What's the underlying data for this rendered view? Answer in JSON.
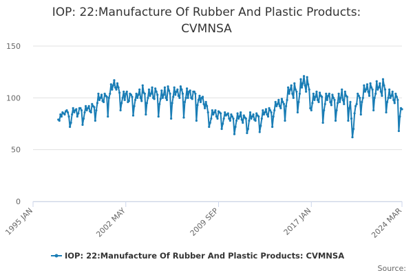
{
  "chart_data": {
    "type": "line",
    "title": "IOP: 22:Manufacture Of Rubber And Plastic Products: CVMNSA",
    "source": "Source:",
    "xlim": [
      "1995-01",
      "2024-03"
    ],
    "xticks": [
      {
        "value": "1995-01",
        "label": "1995 JAN"
      },
      {
        "value": "2002-05",
        "label": "2002 MAY"
      },
      {
        "value": "2009-09",
        "label": "2009 SEP"
      },
      {
        "value": "2017-01",
        "label": "2017 JAN"
      },
      {
        "value": "2024-03",
        "label": "2024 MAR"
      }
    ],
    "ylim": [
      0,
      150
    ],
    "yticks": [
      0,
      50,
      100,
      150
    ],
    "grid": true,
    "legend": "bottom",
    "x": [
      "1997-01",
      "1997-02",
      "1997-03",
      "1997-04",
      "1997-05",
      "1997-06",
      "1997-07",
      "1997-08",
      "1997-09",
      "1997-10",
      "1997-11",
      "1997-12",
      "1998-01",
      "1998-02",
      "1998-03",
      "1998-04",
      "1998-05",
      "1998-06",
      "1998-07",
      "1998-08",
      "1998-09",
      "1998-10",
      "1998-11",
      "1998-12",
      "1999-01",
      "1999-02",
      "1999-03",
      "1999-04",
      "1999-05",
      "1999-06",
      "1999-07",
      "1999-08",
      "1999-09",
      "1999-10",
      "1999-11",
      "1999-12",
      "2000-01",
      "2000-02",
      "2000-03",
      "2000-04",
      "2000-05",
      "2000-06",
      "2000-07",
      "2000-08",
      "2000-09",
      "2000-10",
      "2000-11",
      "2000-12",
      "2001-01",
      "2001-02",
      "2001-03",
      "2001-04",
      "2001-05",
      "2001-06",
      "2001-07",
      "2001-08",
      "2001-09",
      "2001-10",
      "2001-11",
      "2001-12",
      "2002-01",
      "2002-02",
      "2002-03",
      "2002-04",
      "2002-05",
      "2002-06",
      "2002-07",
      "2002-08",
      "2002-09",
      "2002-10",
      "2002-11",
      "2002-12",
      "2003-01",
      "2003-02",
      "2003-03",
      "2003-04",
      "2003-05",
      "2003-06",
      "2003-07",
      "2003-08",
      "2003-09",
      "2003-10",
      "2003-11",
      "2003-12",
      "2004-01",
      "2004-02",
      "2004-03",
      "2004-04",
      "2004-05",
      "2004-06",
      "2004-07",
      "2004-08",
      "2004-09",
      "2004-10",
      "2004-11",
      "2004-12",
      "2005-01",
      "2005-02",
      "2005-03",
      "2005-04",
      "2005-05",
      "2005-06",
      "2005-07",
      "2005-08",
      "2005-09",
      "2005-10",
      "2005-11",
      "2005-12",
      "2006-01",
      "2006-02",
      "2006-03",
      "2006-04",
      "2006-05",
      "2006-06",
      "2006-07",
      "2006-08",
      "2006-09",
      "2006-10",
      "2006-11",
      "2006-12",
      "2007-01",
      "2007-02",
      "2007-03",
      "2007-04",
      "2007-05",
      "2007-06",
      "2007-07",
      "2007-08",
      "2007-09",
      "2007-10",
      "2007-11",
      "2007-12",
      "2008-01",
      "2008-02",
      "2008-03",
      "2008-04",
      "2008-05",
      "2008-06",
      "2008-07",
      "2008-08",
      "2008-09",
      "2008-10",
      "2008-11",
      "2008-12",
      "2009-01",
      "2009-02",
      "2009-03",
      "2009-04",
      "2009-05",
      "2009-06",
      "2009-07",
      "2009-08",
      "2009-09",
      "2009-10",
      "2009-11",
      "2009-12",
      "2010-01",
      "2010-02",
      "2010-03",
      "2010-04",
      "2010-05",
      "2010-06",
      "2010-07",
      "2010-08",
      "2010-09",
      "2010-10",
      "2010-11",
      "2010-12",
      "2011-01",
      "2011-02",
      "2011-03",
      "2011-04",
      "2011-05",
      "2011-06",
      "2011-07",
      "2011-08",
      "2011-09",
      "2011-10",
      "2011-11",
      "2011-12",
      "2012-01",
      "2012-02",
      "2012-03",
      "2012-04",
      "2012-05",
      "2012-06",
      "2012-07",
      "2012-08",
      "2012-09",
      "2012-10",
      "2012-11",
      "2012-12",
      "2013-01",
      "2013-02",
      "2013-03",
      "2013-04",
      "2013-05",
      "2013-06",
      "2013-07",
      "2013-08",
      "2013-09",
      "2013-10",
      "2013-11",
      "2013-12",
      "2014-01",
      "2014-02",
      "2014-03",
      "2014-04",
      "2014-05",
      "2014-06",
      "2014-07",
      "2014-08",
      "2014-09",
      "2014-10",
      "2014-11",
      "2014-12",
      "2015-01",
      "2015-02",
      "2015-03",
      "2015-04",
      "2015-05",
      "2015-06",
      "2015-07",
      "2015-08",
      "2015-09",
      "2015-10",
      "2015-11",
      "2015-12",
      "2016-01",
      "2016-02",
      "2016-03",
      "2016-04",
      "2016-05",
      "2016-06",
      "2016-07",
      "2016-08",
      "2016-09",
      "2016-10",
      "2016-11",
      "2016-12",
      "2017-01",
      "2017-02",
      "2017-03",
      "2017-04",
      "2017-05",
      "2017-06",
      "2017-07",
      "2017-08",
      "2017-09",
      "2017-10",
      "2017-11",
      "2017-12",
      "2018-01",
      "2018-02",
      "2018-03",
      "2018-04",
      "2018-05",
      "2018-06",
      "2018-07",
      "2018-08",
      "2018-09",
      "2018-10",
      "2018-11",
      "2018-12",
      "2019-01",
      "2019-02",
      "2019-03",
      "2019-04",
      "2019-05",
      "2019-06",
      "2019-07",
      "2019-08",
      "2019-09",
      "2019-10",
      "2019-11",
      "2019-12",
      "2020-01",
      "2020-02",
      "2020-03",
      "2020-04",
      "2020-05",
      "2020-06",
      "2020-07",
      "2020-08",
      "2020-09",
      "2020-10",
      "2020-11",
      "2020-12",
      "2021-01",
      "2021-02",
      "2021-03",
      "2021-04",
      "2021-05",
      "2021-06",
      "2021-07",
      "2021-08",
      "2021-09",
      "2021-10",
      "2021-11",
      "2021-12",
      "2022-01",
      "2022-02",
      "2022-03",
      "2022-04",
      "2022-05",
      "2022-06",
      "2022-07",
      "2022-08",
      "2022-09",
      "2022-10",
      "2022-11",
      "2022-12",
      "2023-01",
      "2023-02",
      "2023-03",
      "2023-04",
      "2023-05",
      "2023-06",
      "2023-07",
      "2023-08",
      "2023-09",
      "2023-10",
      "2023-11",
      "2023-12",
      "2024-01",
      "2024-02",
      "2024-03"
    ],
    "series": [
      {
        "name": "IOP: 22:Manufacture Of Rubber And Plastic Products: CVMNSA",
        "color": "#1a7db5",
        "values": [
          79,
          78,
          84,
          82,
          86,
          85,
          84,
          87,
          88,
          86,
          82,
          72,
          76,
          84,
          90,
          86,
          88,
          89,
          82,
          85,
          90,
          90,
          88,
          74,
          80,
          86,
          92,
          88,
          90,
          92,
          87,
          86,
          94,
          92,
          91,
          78,
          88,
          95,
          104,
          98,
          100,
          103,
          97,
          96,
          104,
          102,
          101,
          82,
          100,
          104,
          113,
          108,
          112,
          117,
          110,
          108,
          114,
          110,
          105,
          88,
          95,
          100,
          106,
          98,
          104,
          106,
          96,
          97,
          104,
          103,
          101,
          83,
          92,
          98,
          104,
          100,
          103,
          108,
          100,
          97,
          112,
          105,
          104,
          84,
          95,
          100,
          108,
          102,
          104,
          110,
          100,
          99,
          109,
          106,
          103,
          82,
          94,
          99,
          107,
          100,
          103,
          110,
          100,
          98,
          111,
          107,
          104,
          80,
          95,
          101,
          110,
          103,
          106,
          108,
          102,
          100,
          111,
          108,
          104,
          81,
          96,
          100,
          109,
          100,
          106,
          107,
          100,
          99,
          106,
          106,
          104,
          78,
          93,
          98,
          102,
          96,
          100,
          101,
          94,
          90,
          96,
          92,
          86,
          72,
          76,
          80,
          88,
          84,
          86,
          88,
          82,
          80,
          87,
          86,
          85,
          70,
          75,
          80,
          86,
          83,
          84,
          85,
          80,
          78,
          84,
          82,
          80,
          65,
          72,
          78,
          85,
          80,
          82,
          86,
          79,
          76,
          83,
          81,
          80,
          66,
          70,
          78,
          86,
          80,
          82,
          84,
          79,
          78,
          85,
          83,
          82,
          67,
          73,
          80,
          88,
          84,
          86,
          89,
          84,
          82,
          90,
          88,
          86,
          72,
          82,
          88,
          96,
          92,
          94,
          98,
          92,
          90,
          99,
          96,
          94,
          78,
          92,
          98,
          110,
          104,
          108,
          112,
          104,
          100,
          114,
          108,
          106,
          86,
          96,
          104,
          118,
          110,
          114,
          121,
          112,
          106,
          120,
          113,
          108,
          90,
          88,
          95,
          104,
          98,
          101,
          106,
          98,
          96,
          105,
          102,
          101,
          76,
          88,
          94,
          104,
          98,
          102,
          104,
          96,
          93,
          103,
          100,
          98,
          78,
          88,
          95,
          104,
          96,
          100,
          108,
          98,
          94,
          106,
          102,
          101,
          78,
          90,
          96,
          80,
          62,
          70,
          85,
          92,
          94,
          104,
          102,
          100,
          84,
          96,
          100,
          112,
          106,
          108,
          113,
          106,
          102,
          114,
          110,
          108,
          88,
          100,
          104,
          116,
          108,
          110,
          114,
          106,
          102,
          118,
          112,
          108,
          86,
          96,
          100,
          108,
          100,
          102,
          106,
          98,
          95,
          104,
          101,
          98,
          68,
          82,
          90,
          89
        ]
      }
    ]
  }
}
